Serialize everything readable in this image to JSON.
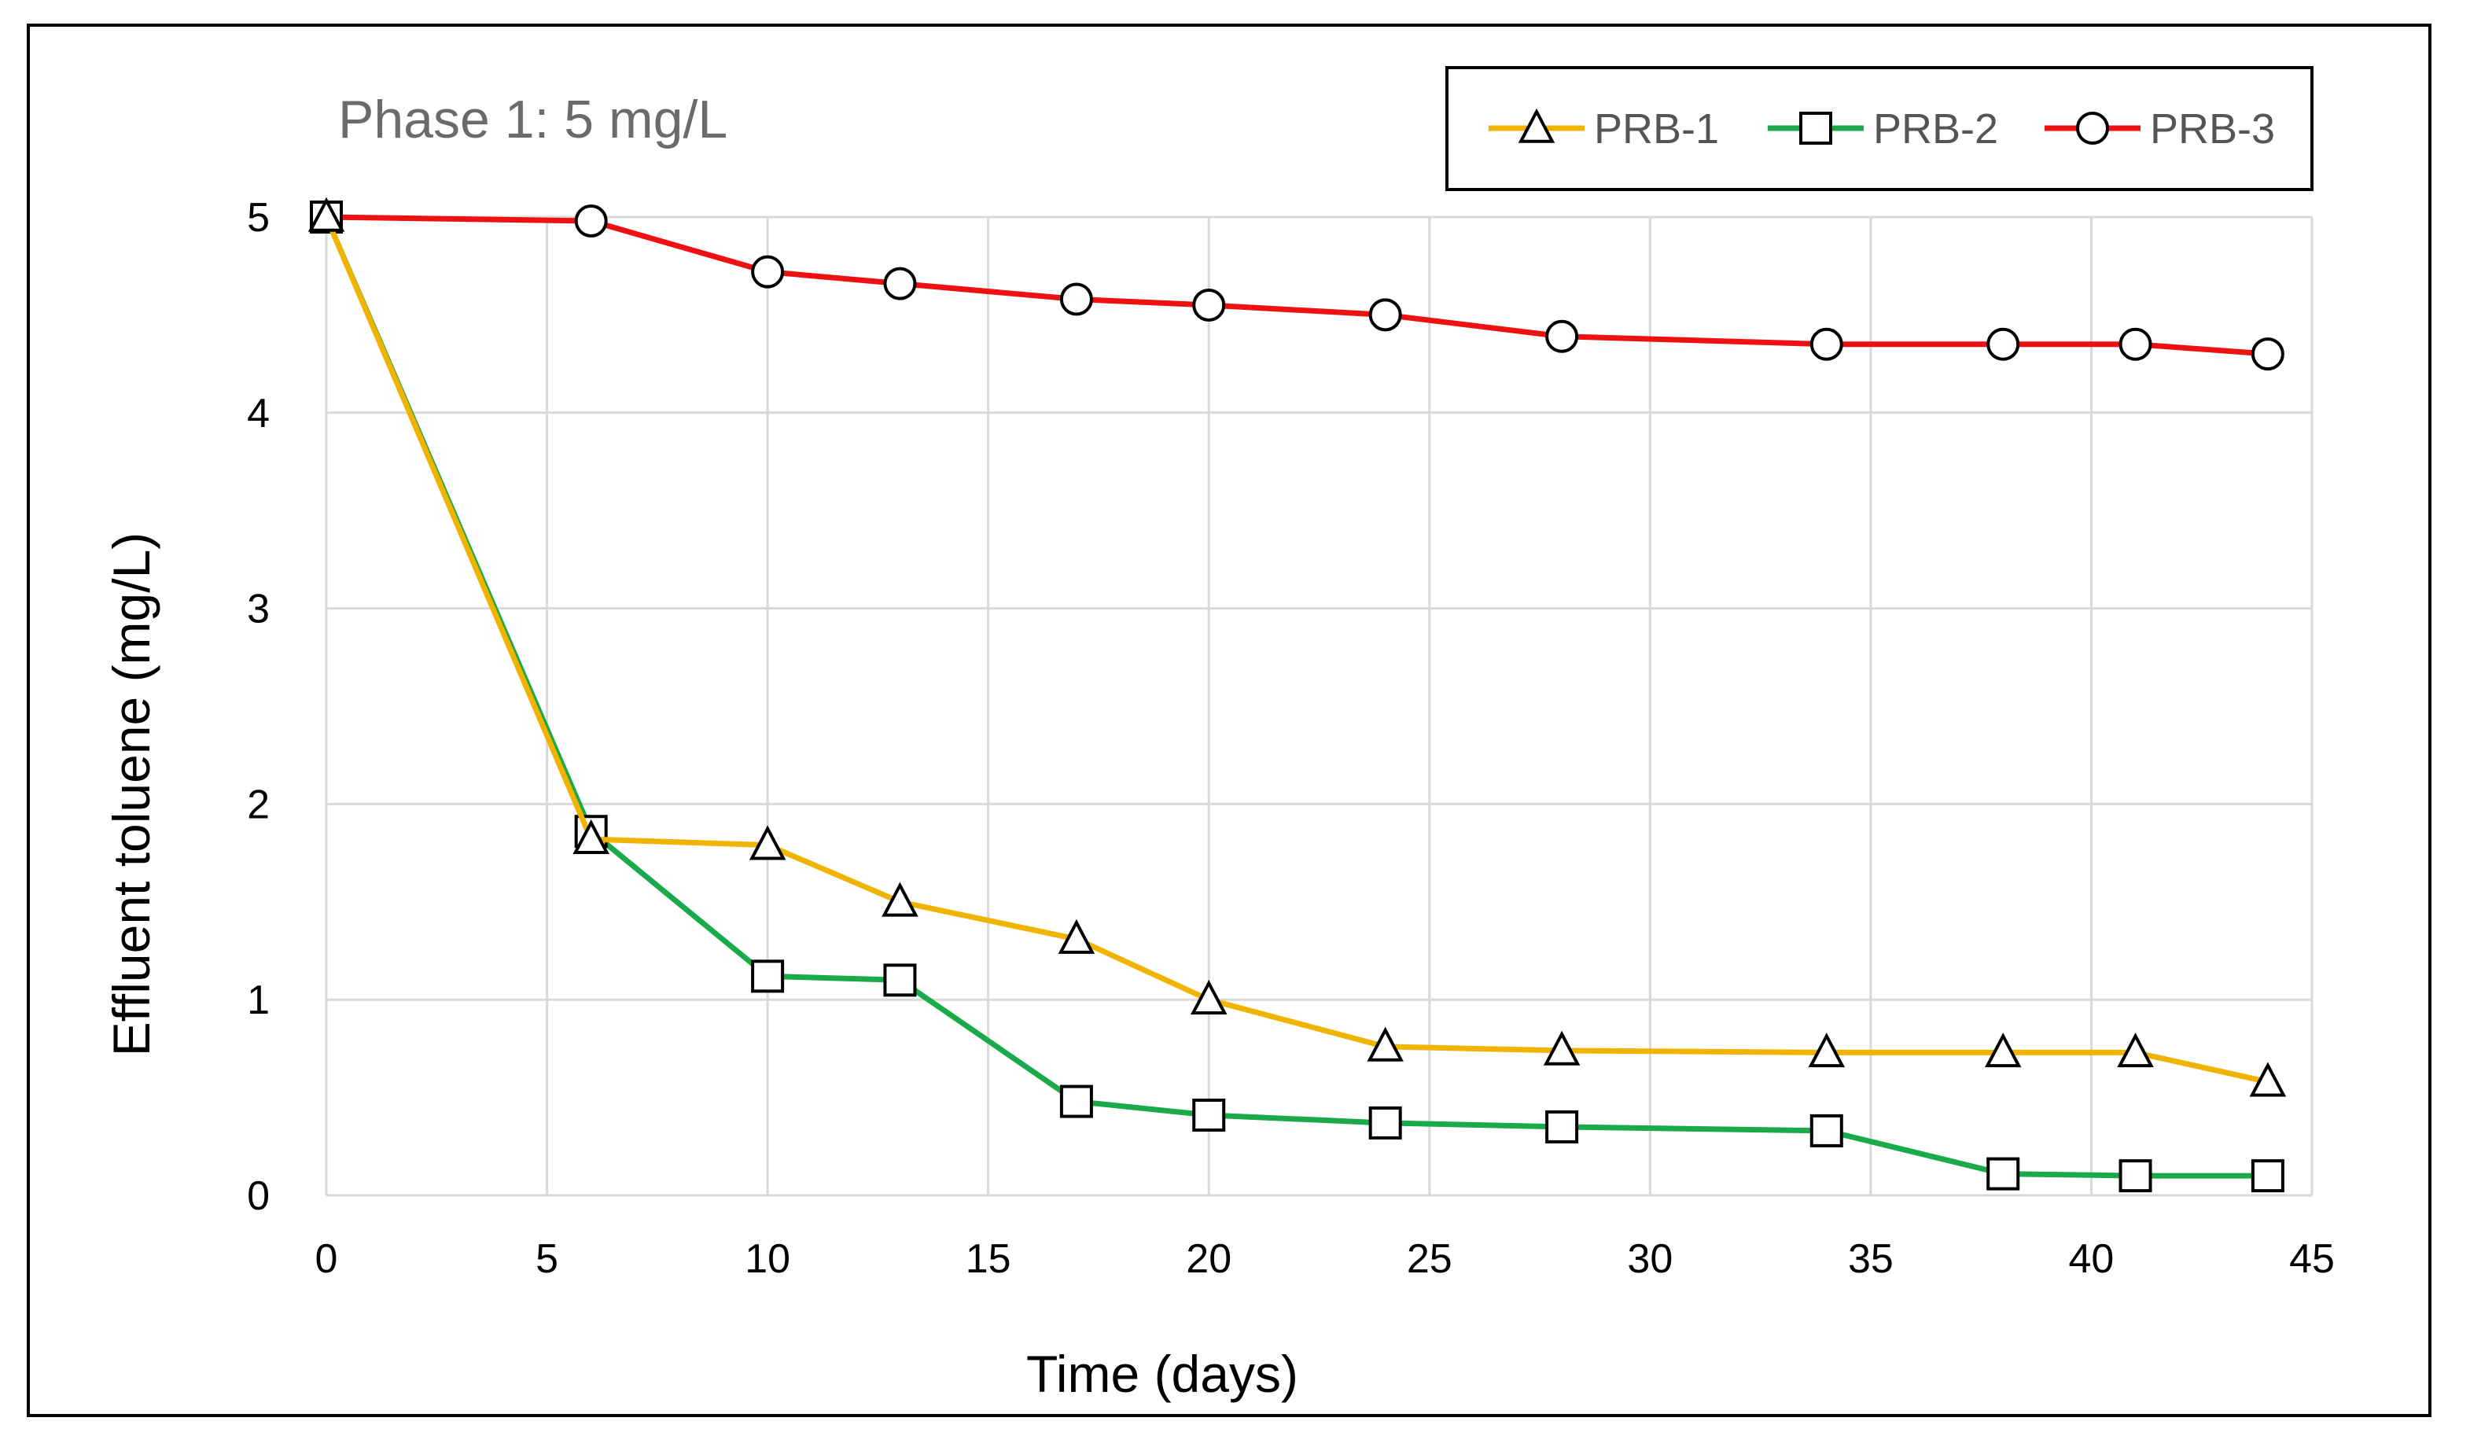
{
  "chart_data": {
    "type": "line",
    "annotation": "Phase 1: 5 mg/L",
    "xlabel": "Time (days)",
    "ylabel": "Effluent toluene (mg/L)",
    "xlim": [
      0,
      45
    ],
    "ylim": [
      0,
      5
    ],
    "x_ticks": [
      "0",
      "5",
      "10",
      "15",
      "20",
      "25",
      "30",
      "35",
      "40",
      "45"
    ],
    "y_ticks": [
      "0",
      "1",
      "2",
      "3",
      "4",
      "5"
    ],
    "grid": true,
    "legend_position": "top-right",
    "x": [
      0,
      6,
      10,
      13,
      17,
      20,
      24,
      28,
      34,
      38,
      41,
      44
    ],
    "series": [
      {
        "name": "PRB-1",
        "color": "#f0b400",
        "marker": "triangle",
        "values": [
          5.0,
          1.82,
          1.79,
          1.5,
          1.31,
          1.0,
          0.76,
          0.74,
          0.73,
          0.73,
          0.73,
          0.58
        ]
      },
      {
        "name": "PRB-2",
        "color": "#1aaa4a",
        "marker": "square",
        "values": [
          5.0,
          1.86,
          1.12,
          1.1,
          0.48,
          0.41,
          0.37,
          0.35,
          0.33,
          0.11,
          0.1,
          0.1
        ]
      },
      {
        "name": "PRB-3",
        "color": "#ee1111",
        "marker": "circle",
        "values": [
          5.0,
          4.98,
          4.72,
          4.66,
          4.58,
          4.55,
          4.5,
          4.39,
          4.35,
          4.35,
          4.35,
          4.3
        ]
      }
    ]
  }
}
